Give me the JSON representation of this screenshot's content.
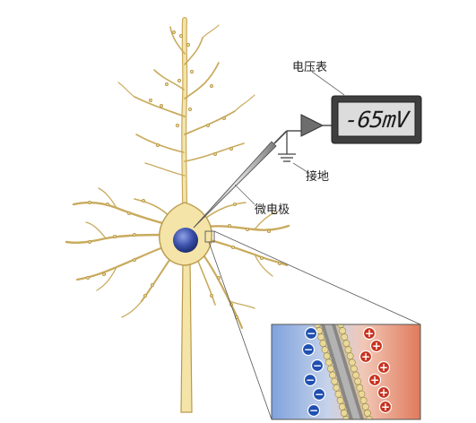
{
  "labels": {
    "voltmeter": "电压表",
    "ground": "接地",
    "microelectrode": "微电极"
  },
  "voltmeter": {
    "reading": "-65mV",
    "body_color": "#3f3f3f",
    "screen_color": "#dcdcdc"
  },
  "neuron": {
    "body_color": "#f4e4a8",
    "outline_color": "#b99a4c",
    "nucleus_color": "#3a4fa8"
  },
  "membrane_inset": {
    "inside_color": "#4a78c8",
    "outside_color": "#d8553a",
    "inside_ions": [
      "−",
      "−",
      "−",
      "−",
      "−",
      "−"
    ],
    "outside_ions": [
      "+",
      "+",
      "+",
      "+",
      "+",
      "+",
      "+"
    ]
  }
}
